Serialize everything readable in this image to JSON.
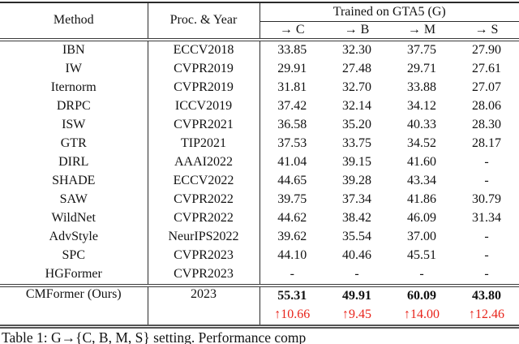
{
  "colors": {
    "gain_red": "#e8231a",
    "rule": "#2a2a2a",
    "text": "#121212"
  },
  "table": {
    "header": {
      "method": "Method",
      "proc_year": "Proc. & Year",
      "group": "Trained on GTA5 (G)",
      "subcols": [
        "→ C",
        "→ B",
        "→ M",
        "→ S"
      ]
    },
    "rows": [
      {
        "method": "IBN",
        "venue": "ECCV2018",
        "values": [
          "33.85",
          "32.30",
          "37.75",
          "27.90"
        ]
      },
      {
        "method": "IW",
        "venue": "CVPR2019",
        "values": [
          "29.91",
          "27.48",
          "29.71",
          "27.61"
        ]
      },
      {
        "method": "Iternorm",
        "venue": "CVPR2019",
        "values": [
          "31.81",
          "32.70",
          "33.88",
          "27.07"
        ]
      },
      {
        "method": "DRPC",
        "venue": "ICCV2019",
        "values": [
          "37.42",
          "32.14",
          "34.12",
          "28.06"
        ]
      },
      {
        "method": "ISW",
        "venue": "CVPR2021",
        "values": [
          "36.58",
          "35.20",
          "40.33",
          "28.30"
        ]
      },
      {
        "method": "GTR",
        "venue": "TIP2021",
        "values": [
          "37.53",
          "33.75",
          "34.52",
          "28.17"
        ]
      },
      {
        "method": "DIRL",
        "venue": "AAAI2022",
        "values": [
          "41.04",
          "39.15",
          "41.60",
          "-"
        ]
      },
      {
        "method": "SHADE",
        "venue": "ECCV2022",
        "values": [
          "44.65",
          "39.28",
          "43.34",
          "-"
        ]
      },
      {
        "method": "SAW",
        "venue": "CVPR2022",
        "values": [
          "39.75",
          "37.34",
          "41.86",
          "30.79"
        ]
      },
      {
        "method": "WildNet",
        "venue": "CVPR2022",
        "values": [
          "44.62",
          "38.42",
          "46.09",
          "31.34"
        ]
      },
      {
        "method": "AdvStyle",
        "venue": "NeurIPS2022",
        "values": [
          "39.62",
          "35.54",
          "37.00",
          "-"
        ]
      },
      {
        "method": "SPC",
        "venue": "CVPR2023",
        "values": [
          "44.10",
          "40.46",
          "45.51",
          "-"
        ]
      },
      {
        "method": "HGFormer",
        "venue": "CVPR2023",
        "values": [
          "-",
          "-",
          "-",
          "-"
        ]
      }
    ],
    "ours": {
      "method": "CMFormer (Ours)",
      "venue": "2023",
      "values": [
        "55.31",
        "49.91",
        "60.09",
        "43.80"
      ],
      "gains": [
        "↑10.66",
        "↑9.45",
        "↑14.00",
        "↑12.46"
      ]
    }
  },
  "caption": "Table 1: G→{C, B, M, S} setting. Performance comp"
}
